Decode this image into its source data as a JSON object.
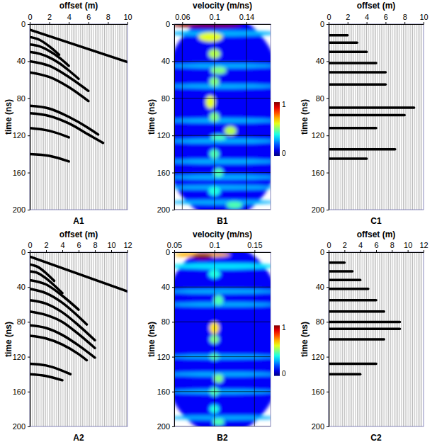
{
  "chart_data": [
    {
      "type": "wiggle",
      "title": "A1",
      "xlabel": "offset (m)",
      "ylabel": "time (ns)",
      "xlim": [
        0,
        10
      ],
      "xticks": [
        0,
        2,
        4,
        6,
        8,
        10
      ],
      "ylim": [
        0,
        200
      ],
      "yticks": [
        0,
        40,
        80,
        120,
        160,
        200
      ],
      "series": [
        {
          "color": "#000000",
          "x": [
            0,
            10
          ],
          "values": [
            6,
            41
          ]
        },
        {
          "color": "#000000",
          "x": [
            0,
            1,
            2,
            3
          ],
          "values": [
            14,
            17,
            24,
            33
          ]
        },
        {
          "color": "#000000",
          "x": [
            0,
            1,
            2,
            3,
            4
          ],
          "values": [
            22,
            24,
            29,
            36,
            45
          ]
        },
        {
          "color": "#000000",
          "x": [
            0,
            1,
            2,
            3,
            4,
            5
          ],
          "values": [
            30,
            32,
            36,
            42,
            50,
            59
          ]
        },
        {
          "color": "#000000",
          "x": [
            0,
            2,
            4,
            6
          ],
          "values": [
            40,
            45,
            57,
            72
          ]
        },
        {
          "color": "#000000",
          "x": [
            0,
            2,
            4,
            6
          ],
          "values": [
            52,
            57,
            68,
            83
          ]
        },
        {
          "color": "#000000",
          "x": [
            0,
            2,
            4,
            6,
            7
          ],
          "values": [
            88,
            91,
            100,
            112,
            119
          ]
        },
        {
          "color": "#000000",
          "x": [
            0,
            2,
            4,
            6,
            7.5
          ],
          "values": [
            96,
            99,
            107,
            119,
            128
          ]
        },
        {
          "color": "#000000",
          "x": [
            0,
            2,
            4
          ],
          "values": [
            112,
            115,
            122
          ]
        },
        {
          "color": "#000000",
          "x": [
            0,
            2,
            4
          ],
          "values": [
            140,
            142,
            148
          ]
        }
      ]
    },
    {
      "type": "heatmap",
      "title": "B1",
      "xlabel": "velocity (m/ns)",
      "ylabel": "time (ns)",
      "xlim": [
        0.05,
        0.17
      ],
      "xticks": [
        0.06,
        0.1,
        0.14
      ],
      "ylim": [
        0,
        200
      ],
      "yticks": [
        0,
        40,
        80,
        120,
        160,
        200
      ],
      "grid": true,
      "colorbar": {
        "range": [
          0,
          1
        ],
        "ticks": [
          0,
          1
        ]
      },
      "cells": [
        {
          "velocity": 0.11,
          "time": 100,
          "value": 0.12,
          "velocity_width": 0.16,
          "time_height": 220
        },
        {
          "velocity": 0.11,
          "time": 10,
          "value": 0.3,
          "velocity_width": 0.14,
          "time_height": 6
        },
        {
          "velocity": 0.11,
          "time": 45,
          "value": 0.3,
          "velocity_width": 0.14,
          "time_height": 5
        },
        {
          "velocity": 0.11,
          "time": 67,
          "value": 0.3,
          "velocity_width": 0.14,
          "time_height": 5
        },
        {
          "velocity": 0.11,
          "time": 104,
          "value": 0.3,
          "velocity_width": 0.14,
          "time_height": 5
        },
        {
          "velocity": 0.11,
          "time": 126,
          "value": 0.3,
          "velocity_width": 0.14,
          "time_height": 5
        },
        {
          "velocity": 0.11,
          "time": 148,
          "value": 0.3,
          "velocity_width": 0.14,
          "time_height": 5
        },
        {
          "velocity": 0.11,
          "time": 165,
          "value": 0.3,
          "velocity_width": 0.14,
          "time_height": 5
        },
        {
          "velocity": 0.11,
          "time": 176,
          "value": 0.3,
          "velocity_width": 0.14,
          "time_height": 5
        },
        {
          "velocity": 0.11,
          "time": 192,
          "value": 0.3,
          "velocity_width": 0.14,
          "time_height": 5
        },
        {
          "velocity": 0.09,
          "time": 1,
          "value": 1.0,
          "velocity_width": 0.09,
          "time_height": 5
        },
        {
          "velocity": 0.095,
          "time": 14,
          "value": 0.6,
          "velocity_width": 0.03,
          "time_height": 10
        },
        {
          "velocity": 0.1,
          "time": 32,
          "value": 0.55,
          "velocity_width": 0.015,
          "time_height": 10
        },
        {
          "velocity": 0.105,
          "time": 50,
          "value": 0.5,
          "velocity_width": 0.02,
          "time_height": 8
        },
        {
          "velocity": 0.1,
          "time": 62,
          "value": 0.5,
          "velocity_width": 0.012,
          "time_height": 10
        },
        {
          "velocity": 0.095,
          "time": 84,
          "value": 0.6,
          "velocity_width": 0.012,
          "time_height": 14
        },
        {
          "velocity": 0.1,
          "time": 100,
          "value": 0.5,
          "velocity_width": 0.012,
          "time_height": 10
        },
        {
          "velocity": 0.12,
          "time": 115,
          "value": 0.55,
          "velocity_width": 0.015,
          "time_height": 10
        },
        {
          "velocity": 0.105,
          "time": 122,
          "value": 0.45,
          "velocity_width": 0.02,
          "time_height": 6
        },
        {
          "velocity": 0.1,
          "time": 140,
          "value": 0.45,
          "velocity_width": 0.012,
          "time_height": 10
        },
        {
          "velocity": 0.105,
          "time": 160,
          "value": 0.45,
          "velocity_width": 0.012,
          "time_height": 10
        },
        {
          "velocity": 0.1,
          "time": 180,
          "value": 0.4,
          "velocity_width": 0.015,
          "time_height": 10
        },
        {
          "velocity": 0.125,
          "time": 195,
          "value": 0.45,
          "velocity_width": 0.02,
          "time_height": 8
        }
      ]
    },
    {
      "type": "wiggle",
      "title": "C1",
      "xlabel": "offset (m)",
      "ylabel": "time (ns)",
      "xlim": [
        0,
        10
      ],
      "xticks": [
        0,
        2,
        4,
        6,
        8,
        10
      ],
      "ylim": [
        0,
        200
      ],
      "yticks": [
        0,
        40,
        80,
        120,
        160,
        200
      ],
      "series": [
        {
          "color": "#000000",
          "x": [
            0,
            2
          ],
          "values": [
            12,
            12
          ]
        },
        {
          "color": "#000000",
          "x": [
            0,
            3
          ],
          "values": [
            20,
            20
          ]
        },
        {
          "color": "#000000",
          "x": [
            0,
            4
          ],
          "values": [
            30,
            30
          ]
        },
        {
          "color": "#000000",
          "x": [
            0,
            5
          ],
          "values": [
            42,
            42
          ]
        },
        {
          "color": "#000000",
          "x": [
            0,
            6
          ],
          "values": [
            52,
            52
          ]
        },
        {
          "color": "#000000",
          "x": [
            0,
            6
          ],
          "values": [
            65,
            65
          ]
        },
        {
          "color": "#000000",
          "x": [
            0,
            9
          ],
          "values": [
            90,
            90
          ]
        },
        {
          "color": "#000000",
          "x": [
            0,
            8
          ],
          "values": [
            98,
            98
          ]
        },
        {
          "color": "#000000",
          "x": [
            0,
            5
          ],
          "values": [
            112,
            112
          ]
        },
        {
          "color": "#000000",
          "x": [
            0,
            7
          ],
          "values": [
            135,
            135
          ]
        },
        {
          "color": "#000000",
          "x": [
            0,
            4
          ],
          "values": [
            145,
            145
          ]
        }
      ]
    },
    {
      "type": "wiggle",
      "title": "A2",
      "xlabel": "offset (m)",
      "ylabel": "time (ns)",
      "xlim": [
        0,
        12
      ],
      "xticks": [
        0,
        2,
        4,
        6,
        8,
        10,
        12
      ],
      "ylim": [
        0,
        200
      ],
      "yticks": [
        0,
        40,
        80,
        120,
        160,
        200
      ],
      "series": [
        {
          "color": "#000000",
          "x": [
            0,
            12
          ],
          "values": [
            5,
            45
          ]
        },
        {
          "color": "#000000",
          "x": [
            0,
            1,
            2,
            3
          ],
          "values": [
            14,
            17,
            24,
            33
          ]
        },
        {
          "color": "#000000",
          "x": [
            0,
            1,
            2,
            3,
            4
          ],
          "values": [
            22,
            24,
            30,
            38,
            47
          ]
        },
        {
          "color": "#000000",
          "x": [
            0,
            2,
            4,
            6
          ],
          "values": [
            32,
            37,
            50,
            66
          ]
        },
        {
          "color": "#000000",
          "x": [
            0,
            2,
            4,
            6,
            7
          ],
          "values": [
            42,
            47,
            58,
            74,
            83
          ]
        },
        {
          "color": "#000000",
          "x": [
            0,
            2,
            4,
            6,
            8
          ],
          "values": [
            55,
            59,
            69,
            84,
            101
          ]
        },
        {
          "color": "#000000",
          "x": [
            0,
            2,
            4,
            6,
            8
          ],
          "values": [
            68,
            72,
            80,
            94,
            110
          ]
        },
        {
          "color": "#000000",
          "x": [
            0,
            2,
            4,
            6,
            8
          ],
          "values": [
            84,
            87,
            95,
            107,
            121
          ]
        },
        {
          "color": "#000000",
          "x": [
            0,
            2,
            4,
            6,
            7
          ],
          "values": [
            96,
            99,
            106,
            117,
            124
          ]
        },
        {
          "color": "#000000",
          "x": [
            0,
            2,
            4,
            5
          ],
          "values": [
            128,
            130,
            136,
            140
          ]
        },
        {
          "color": "#000000",
          "x": [
            0,
            2,
            4
          ],
          "values": [
            140,
            142,
            147
          ]
        }
      ]
    },
    {
      "type": "heatmap",
      "title": "B2",
      "xlabel": "velocity (m/ns)",
      "ylabel": "time (ns)",
      "xlim": [
        0.05,
        0.17
      ],
      "xticks": [
        0.05,
        0.1,
        0.15
      ],
      "ylim": [
        0,
        200
      ],
      "yticks": [
        0,
        40,
        80,
        120,
        160,
        200
      ],
      "grid": true,
      "colorbar": {
        "range": [
          0,
          1
        ],
        "ticks": [
          0,
          1
        ]
      },
      "cells": [
        {
          "velocity": 0.11,
          "time": 100,
          "value": 0.12,
          "velocity_width": 0.16,
          "time_height": 220
        },
        {
          "velocity": 0.11,
          "time": 16,
          "value": 0.35,
          "velocity_width": 0.14,
          "time_height": 7
        },
        {
          "velocity": 0.11,
          "time": 45,
          "value": 0.3,
          "velocity_width": 0.14,
          "time_height": 5
        },
        {
          "velocity": 0.11,
          "time": 60,
          "value": 0.3,
          "velocity_width": 0.14,
          "time_height": 5
        },
        {
          "velocity": 0.11,
          "time": 120,
          "value": 0.3,
          "velocity_width": 0.14,
          "time_height": 5
        },
        {
          "velocity": 0.11,
          "time": 140,
          "value": 0.3,
          "velocity_width": 0.14,
          "time_height": 5
        },
        {
          "velocity": 0.11,
          "time": 160,
          "value": 0.3,
          "velocity_width": 0.14,
          "time_height": 5
        },
        {
          "velocity": 0.11,
          "time": 190,
          "value": 0.3,
          "velocity_width": 0.14,
          "time_height": 5
        },
        {
          "velocity": 0.085,
          "time": 3,
          "value": 0.7,
          "velocity_width": 0.07,
          "time_height": 6
        },
        {
          "velocity": 0.085,
          "time": 5,
          "value": 1.0,
          "velocity_width": 0.025,
          "time_height": 6
        },
        {
          "velocity": 0.1,
          "time": 25,
          "value": 0.4,
          "velocity_width": 0.015,
          "time_height": 10
        },
        {
          "velocity": 0.105,
          "time": 55,
          "value": 0.45,
          "velocity_width": 0.012,
          "time_height": 12
        },
        {
          "velocity": 0.1,
          "time": 87,
          "value": 0.65,
          "velocity_width": 0.012,
          "time_height": 14
        },
        {
          "velocity": 0.1,
          "time": 100,
          "value": 0.5,
          "velocity_width": 0.012,
          "time_height": 10
        },
        {
          "velocity": 0.1,
          "time": 120,
          "value": 0.45,
          "velocity_width": 0.012,
          "time_height": 8
        },
        {
          "velocity": 0.105,
          "time": 145,
          "value": 0.5,
          "velocity_width": 0.012,
          "time_height": 10
        },
        {
          "velocity": 0.1,
          "time": 160,
          "value": 0.45,
          "velocity_width": 0.012,
          "time_height": 10
        },
        {
          "velocity": 0.1,
          "time": 180,
          "value": 0.4,
          "velocity_width": 0.012,
          "time_height": 10
        },
        {
          "velocity": 0.105,
          "time": 195,
          "value": 0.45,
          "velocity_width": 0.015,
          "time_height": 8
        }
      ]
    },
    {
      "type": "wiggle",
      "title": "C2",
      "xlabel": "offset (m)",
      "ylabel": "time (ns)",
      "xlim": [
        0,
        12
      ],
      "xticks": [
        0,
        2,
        4,
        6,
        8,
        10,
        12
      ],
      "ylim": [
        0,
        200
      ],
      "yticks": [
        0,
        40,
        80,
        120,
        160,
        200
      ],
      "series": [
        {
          "color": "#000000",
          "x": [
            0,
            2
          ],
          "values": [
            12,
            12
          ]
        },
        {
          "color": "#000000",
          "x": [
            0,
            3
          ],
          "values": [
            22,
            22
          ]
        },
        {
          "color": "#000000",
          "x": [
            0,
            4
          ],
          "values": [
            32,
            32
          ]
        },
        {
          "color": "#000000",
          "x": [
            0,
            5
          ],
          "values": [
            42,
            42
          ]
        },
        {
          "color": "#000000",
          "x": [
            0,
            6
          ],
          "values": [
            55,
            55
          ]
        },
        {
          "color": "#000000",
          "x": [
            0,
            7
          ],
          "values": [
            68,
            68
          ]
        },
        {
          "color": "#000000",
          "x": [
            0,
            9
          ],
          "values": [
            80,
            80
          ]
        },
        {
          "color": "#000000",
          "x": [
            0,
            9
          ],
          "values": [
            88,
            88
          ]
        },
        {
          "color": "#000000",
          "x": [
            0,
            7
          ],
          "values": [
            100,
            100
          ]
        },
        {
          "color": "#000000",
          "x": [
            0,
            6
          ],
          "values": [
            128,
            128
          ]
        },
        {
          "color": "#000000",
          "x": [
            0,
            4
          ],
          "values": [
            140,
            140
          ]
        }
      ]
    }
  ]
}
